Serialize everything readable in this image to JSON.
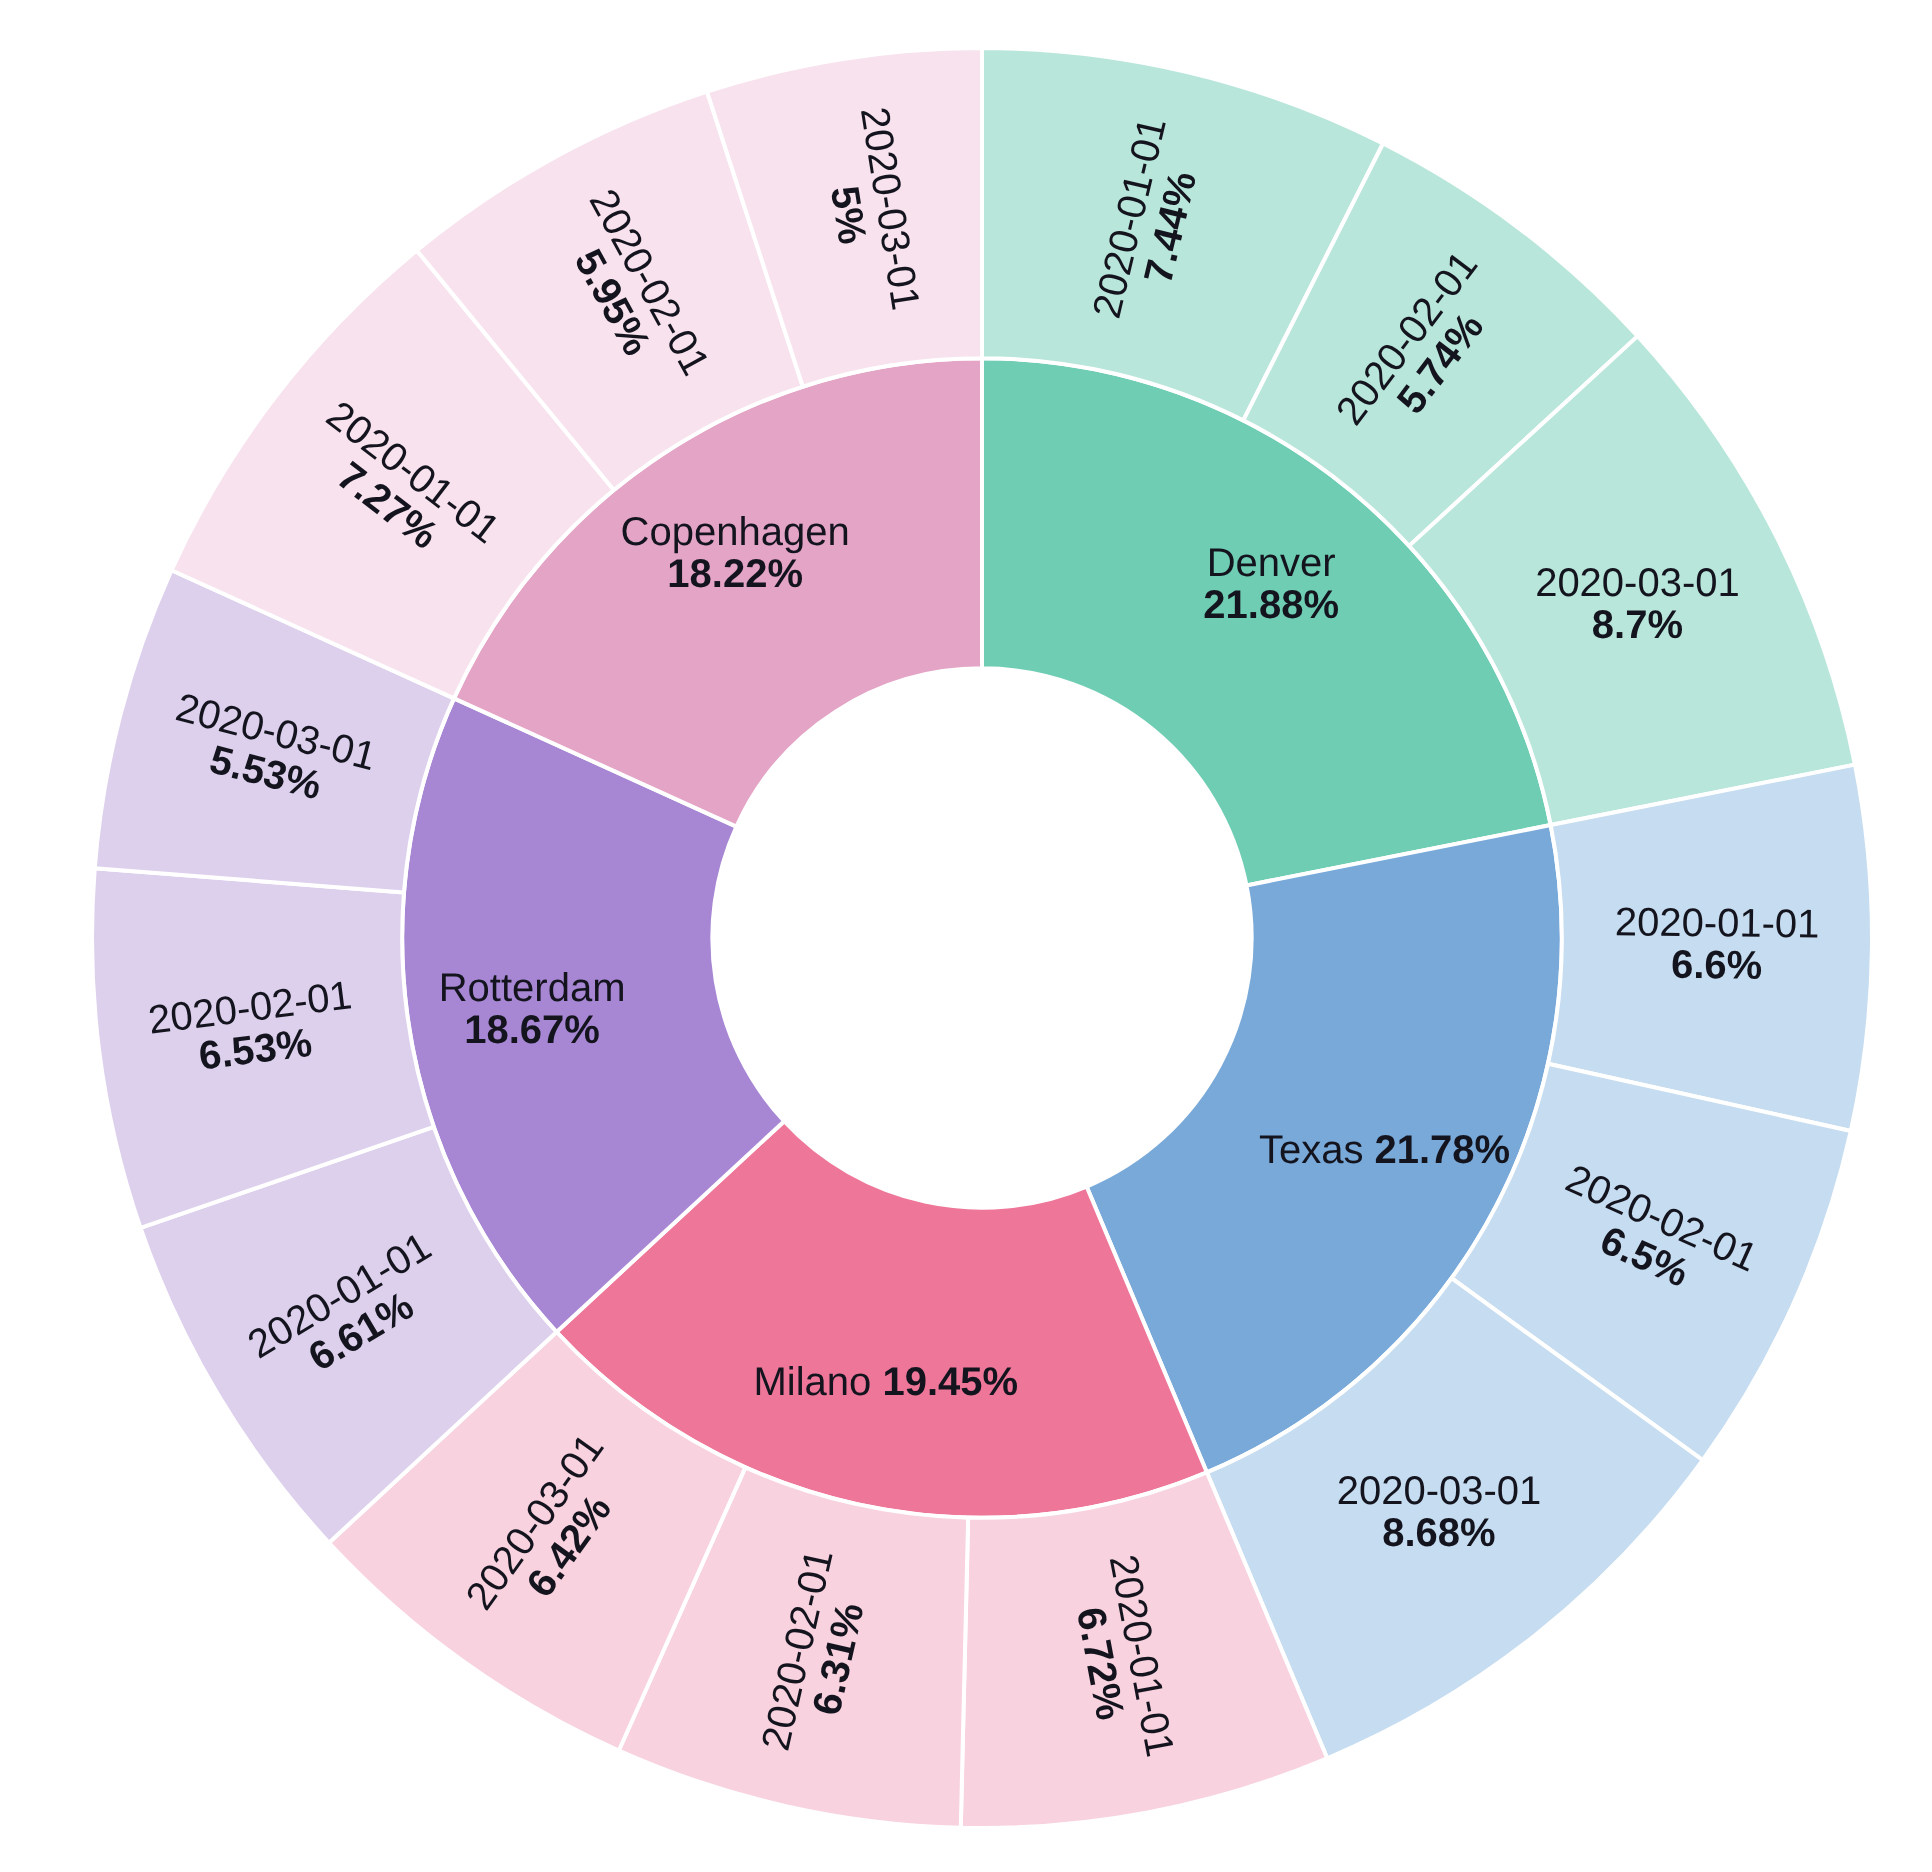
{
  "chart_data": {
    "type": "other",
    "categories": [
      "Denver",
      "Texas",
      "Milano",
      "Rotterdam",
      "Copenhagen"
    ],
    "values": [
      21.88,
      21.78,
      19.45,
      18.67,
      18.22
    ],
    "value_labels": [
      "21.88%",
      "21.78%",
      "19.45%",
      "18.67%",
      "18.22%"
    ],
    "colors": [
      "#6fcdb3",
      "#78a9d9",
      "#ee7799",
      "#a787d3",
      "#e4a4c6"
    ],
    "series": [
      {
        "name": "2020-01-01",
        "values": [
          7.44,
          6.6,
          6.72,
          6.61,
          7.27
        ],
        "value_labels": [
          "7.44%",
          "6.6%",
          "6.72%",
          "6.61%",
          "7.27%"
        ],
        "colors": [
          "#b9e6da",
          "#c6dcf0",
          "#f8d2de",
          "#ddd0ed",
          "#f7e2ed"
        ]
      },
      {
        "name": "2020-02-01",
        "values": [
          5.74,
          6.5,
          6.31,
          6.53,
          5.95
        ],
        "value_labels": [
          "5.74%",
          "6.5%",
          "6.31%",
          "6.53%",
          "5.95%"
        ],
        "colors": [
          "#b9e6da",
          "#c6dcf0",
          "#f8d2de",
          "#ddd0ed",
          "#f7e2ed"
        ]
      },
      {
        "name": "2020-03-01",
        "values": [
          8.7,
          8.68,
          6.42,
          5.53,
          5
        ],
        "value_labels": [
          "8.7%",
          "8.68%",
          "6.42%",
          "5.53%",
          "5%"
        ],
        "colors": [
          "#b9e6da",
          "#c6dcf0",
          "#f8d2de",
          "#ddd0ed",
          "#f7e2ed"
        ]
      }
    ]
  }
}
